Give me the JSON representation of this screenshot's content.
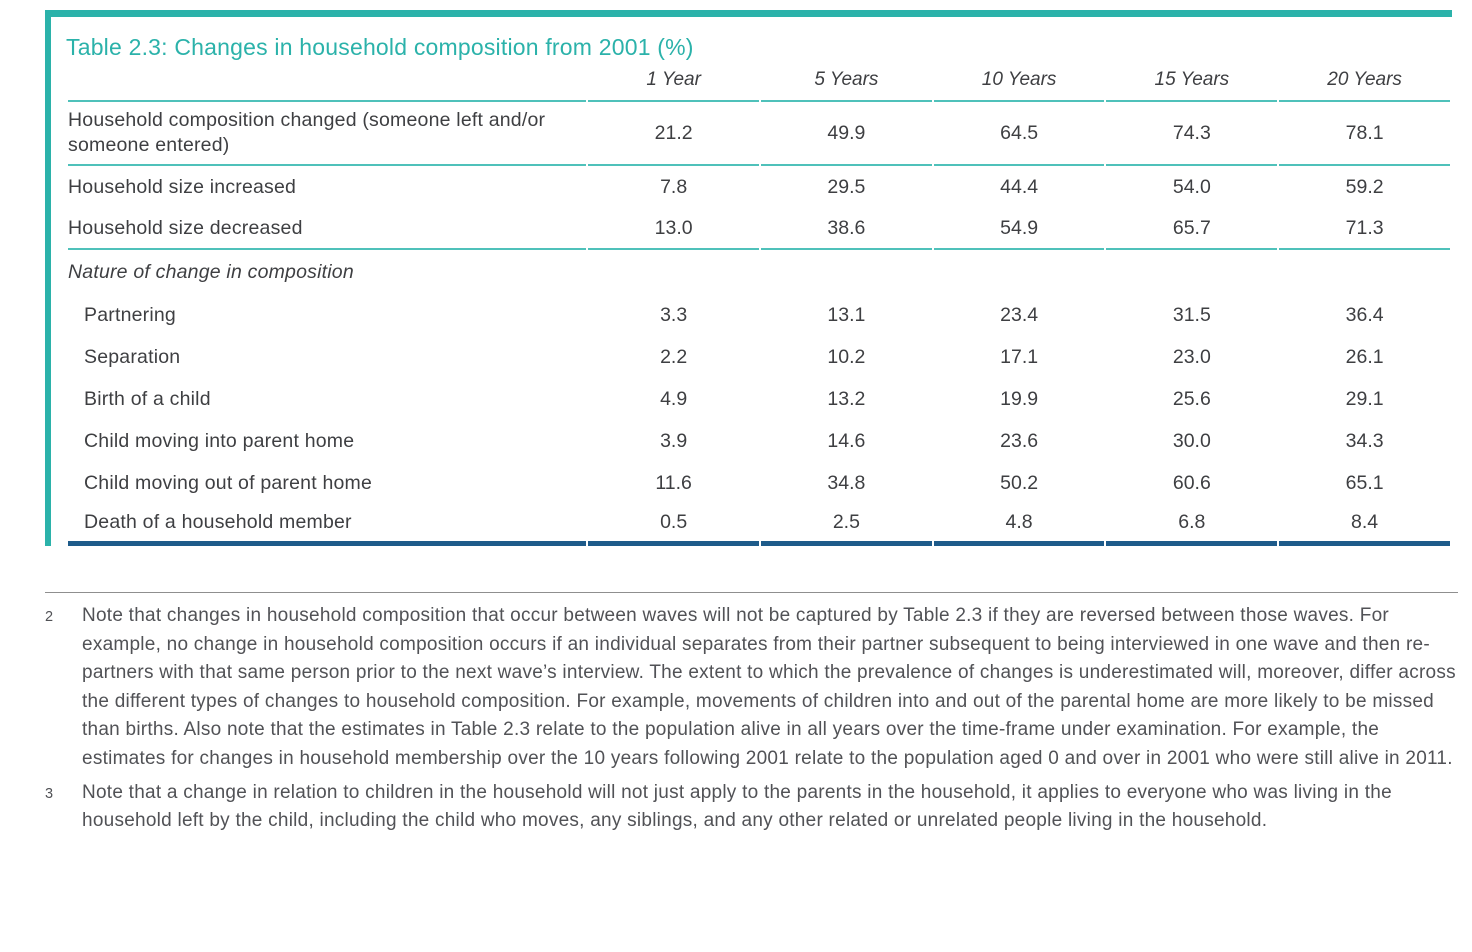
{
  "table": {
    "title": "Table 2.3: Changes in household composition from 2001 (%)",
    "col_headers": [
      "1 Year",
      "5 Years",
      "10 Years",
      "15 Years",
      "20 Years"
    ],
    "rows": [
      {
        "label": "Household composition changed (someone left and/or someone entered)",
        "style": "plain",
        "height": "tall",
        "rule_below": true,
        "values": [
          "21.2",
          "49.9",
          "64.5",
          "74.3",
          "78.1"
        ]
      },
      {
        "label": "Household size increased",
        "style": "plain",
        "height": "std",
        "rule_below": false,
        "values": [
          "7.8",
          "29.5",
          "44.4",
          "54.0",
          "59.2"
        ]
      },
      {
        "label": "Household size decreased",
        "style": "plain",
        "height": "std",
        "rule_below": true,
        "values": [
          "13.0",
          "38.6",
          "54.9",
          "65.7",
          "71.3"
        ]
      },
      {
        "label": "Nature of change in composition",
        "style": "section",
        "height": "sec",
        "rule_below": false,
        "values": [
          "",
          "",
          "",
          "",
          ""
        ]
      },
      {
        "label": "Partnering",
        "style": "indent",
        "height": "std",
        "rule_below": false,
        "values": [
          "3.3",
          "13.1",
          "23.4",
          "31.5",
          "36.4"
        ]
      },
      {
        "label": "Separation",
        "style": "indent",
        "height": "std",
        "rule_below": false,
        "values": [
          "2.2",
          "10.2",
          "17.1",
          "23.0",
          "26.1"
        ]
      },
      {
        "label": "Birth of a child",
        "style": "indent",
        "height": "std",
        "rule_below": false,
        "values": [
          "4.9",
          "13.2",
          "19.9",
          "25.6",
          "29.1"
        ]
      },
      {
        "label": "Child moving into parent home",
        "style": "indent",
        "height": "std",
        "rule_below": false,
        "values": [
          "3.9",
          "14.6",
          "23.6",
          "30.0",
          "34.3"
        ]
      },
      {
        "label": "Child moving out of parent home",
        "style": "indent",
        "height": "std",
        "rule_below": false,
        "values": [
          "11.6",
          "34.8",
          "50.2",
          "60.6",
          "65.1"
        ]
      },
      {
        "label": "Death of a household member",
        "style": "indent",
        "height": "std",
        "rule_below": false,
        "values": [
          "0.5",
          "2.5",
          "4.8",
          "6.8",
          "8.4"
        ]
      }
    ]
  },
  "footnotes": [
    {
      "marker": "2",
      "text": "Note that changes in household composition that occur between waves will not be captured by Table 2.3 if they are reversed between those waves. For example, no change in household composition occurs if an individual separates from their partner subsequent to being interviewed in one wave and then re-partners with that same person prior to the next wave’s interview. The extent to which the prevalence of changes is underestimated will, moreover, differ across the different types of changes to household composition. For example, movements of children into and out of the parental home are more likely to be missed than births. Also note that the estimates in Table 2.3 relate to the population alive in all years over the time-frame under examination. For example, the estimates for changes in household membership over the 10 years following 2001 relate to the population aged 0 and over in 2001 who were still alive in 2011."
    },
    {
      "marker": "3",
      "text": "Note that a change in relation to children in the household will not just apply to the parents in the household, it applies to everyone who was living in the household left by the child, including the child who moves, any siblings, and any other related or unrelated people living in the household."
    }
  ],
  "colors": {
    "accent_teal": "#2bb2aa",
    "rule_teal": "#4fc1ba",
    "bottom_navy": "#1e5b8a",
    "table_text": "#3e3f42",
    "footnote_text": "#515256",
    "divider_gray": "#8f8f8f"
  }
}
